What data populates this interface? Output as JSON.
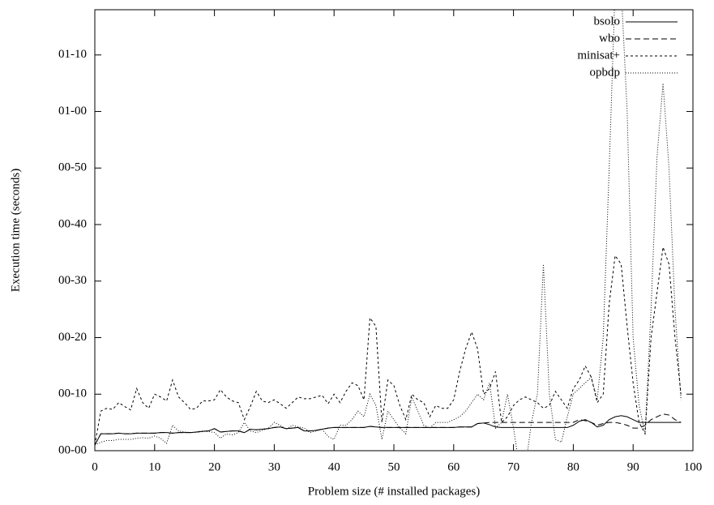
{
  "chart_data": {
    "type": "line",
    "xlabel": "Problem size (# installed packages)",
    "ylabel": "Execution time (seconds)",
    "xlim": [
      0,
      100
    ],
    "xticks": [
      0,
      10,
      20,
      30,
      40,
      50,
      60,
      70,
      80,
      90,
      100
    ],
    "ylim": [
      0,
      78
    ],
    "yticks": [
      {
        "value": 0,
        "label": "00-00"
      },
      {
        "value": 10,
        "label": "00-10"
      },
      {
        "value": 20,
        "label": "00-20"
      },
      {
        "value": 30,
        "label": "00-30"
      },
      {
        "value": 40,
        "label": "00-40"
      },
      {
        "value": 50,
        "label": "00-50"
      },
      {
        "value": 60,
        "label": "01-00"
      },
      {
        "value": 70,
        "label": "01-10"
      }
    ],
    "legend": "top-right",
    "x": [
      0,
      1,
      2,
      3,
      4,
      5,
      6,
      7,
      8,
      9,
      10,
      11,
      12,
      13,
      14,
      15,
      16,
      17,
      18,
      19,
      20,
      21,
      22,
      23,
      24,
      25,
      26,
      27,
      28,
      29,
      30,
      31,
      32,
      33,
      34,
      35,
      36,
      37,
      38,
      39,
      40,
      41,
      42,
      43,
      44,
      45,
      46,
      47,
      48,
      49,
      50,
      51,
      52,
      53,
      54,
      55,
      56,
      57,
      58,
      59,
      60,
      61,
      62,
      63,
      64,
      65,
      66,
      67,
      68,
      69,
      70,
      71,
      72,
      73,
      74,
      75,
      76,
      77,
      78,
      79,
      80,
      81,
      82,
      83,
      84,
      85,
      86,
      87,
      88,
      89,
      90,
      91,
      92,
      93,
      94,
      95,
      96,
      97,
      98
    ],
    "series": [
      {
        "name": "bsolo",
        "color": "#000000",
        "dash": "none",
        "values": [
          1,
          3,
          3,
          3,
          3.1,
          3,
          3,
          3.1,
          3.1,
          3.1,
          3.1,
          3.2,
          3.2,
          3.1,
          3.2,
          3.2,
          3.2,
          3.3,
          3.4,
          3.5,
          3.9,
          3.3,
          3.4,
          3.5,
          3.5,
          3.2,
          3.8,
          3.7,
          3.8,
          3.9,
          4.1,
          4.2,
          3.9,
          4,
          4.1,
          3.5,
          3.5,
          3.6,
          3.8,
          4,
          4.1,
          4.1,
          4.1,
          4.1,
          4.1,
          4.1,
          4.3,
          4.2,
          4.1,
          4.1,
          4.1,
          4.1,
          4.1,
          4.1,
          4.1,
          4.1,
          4.1,
          4.1,
          4.1,
          4.1,
          4.1,
          4.2,
          4.2,
          4.2,
          4.8,
          4.9,
          4.6,
          4.2,
          4.1,
          4.1,
          4.1,
          4.1,
          4.1,
          4.1,
          4.1,
          4.1,
          4.1,
          4.1,
          4.1,
          4.1,
          4.5,
          5.2,
          5.5,
          5,
          4.2,
          4.5,
          5.5,
          6,
          6.2,
          6,
          5.5,
          5,
          5,
          5,
          5,
          5,
          5,
          5,
          5
        ]
      },
      {
        "name": "wbo",
        "color": "#000000",
        "dash": "7,4",
        "values": [
          1,
          3,
          3,
          3,
          3.1,
          3,
          3,
          3.1,
          3.1,
          3.1,
          3.1,
          3.2,
          3.2,
          3.1,
          3.2,
          3.2,
          3.2,
          3.3,
          3.4,
          3.5,
          3.9,
          3.3,
          3.4,
          3.5,
          3.5,
          3.2,
          3.8,
          3.7,
          3.8,
          3.9,
          4.1,
          4.2,
          3.9,
          4,
          4.1,
          3.5,
          3.5,
          3.6,
          3.8,
          4,
          4.1,
          4.1,
          4.1,
          4.1,
          4.1,
          4.1,
          4.3,
          4.2,
          4.1,
          4.1,
          4.1,
          4.1,
          4.1,
          4.1,
          4.1,
          4.1,
          4.1,
          4.1,
          4.1,
          4.1,
          4.1,
          4.2,
          4.2,
          4.2,
          4.8,
          4.9,
          5,
          5,
          5,
          5,
          5,
          5,
          5,
          5,
          5,
          5,
          5,
          5,
          5,
          5,
          5,
          5.5,
          5.3,
          5,
          4.5,
          4.8,
          5,
          5,
          4.8,
          4.5,
          4,
          4,
          4.5,
          5.5,
          6,
          6.5,
          6.3,
          5.5,
          5
        ]
      },
      {
        "name": "minisat+",
        "color": "#000000",
        "dash": "3,3",
        "values": [
          1,
          7,
          7.5,
          7.3,
          8.5,
          7.8,
          7.2,
          11,
          8.5,
          7.5,
          10,
          9.5,
          8.8,
          12.5,
          9.5,
          8.5,
          7.3,
          7.5,
          8.8,
          8.8,
          9,
          10.8,
          9.5,
          8.8,
          8.5,
          5.5,
          7.8,
          10.5,
          8.8,
          8.5,
          9,
          8.3,
          7.5,
          8.5,
          9.5,
          9.2,
          9.2,
          9.5,
          9.8,
          8.3,
          10,
          8.5,
          10.5,
          12,
          11.5,
          9,
          23.5,
          22,
          5,
          12.5,
          11.5,
          8,
          5.5,
          10,
          9,
          8.5,
          6,
          8,
          7.5,
          7.5,
          9,
          14,
          18,
          21,
          18,
          10,
          11,
          14,
          5,
          6,
          8,
          9,
          9.5,
          9,
          8.5,
          7.5,
          8,
          10.5,
          9,
          7.5,
          11,
          12.5,
          15,
          13,
          8.5,
          10,
          26,
          34.5,
          33,
          22,
          12,
          5,
          3,
          20,
          28,
          36,
          33,
          20,
          10
        ]
      },
      {
        "name": "opbdp",
        "color": "#000000",
        "dash": "1,2",
        "values": [
          1,
          1.5,
          1.8,
          1.8,
          2,
          2,
          2,
          2.2,
          2.3,
          2.2,
          2.6,
          2.2,
          1.3,
          4.5,
          3.5,
          3.3,
          3.2,
          3.3,
          3.5,
          3.4,
          3.2,
          2.2,
          3,
          2.8,
          3.2,
          5,
          3.5,
          3.2,
          3.6,
          4,
          5,
          4.5,
          3.8,
          4.5,
          4.2,
          4,
          3.2,
          3.5,
          3.8,
          2.5,
          2,
          4.5,
          4.5,
          5.5,
          7,
          6,
          10,
          8,
          2,
          7,
          5.5,
          4,
          3,
          9.5,
          7,
          4.5,
          4,
          5,
          5,
          5,
          5.5,
          6,
          7,
          8.5,
          10,
          9,
          12,
          4,
          5,
          10,
          4,
          -3,
          -3,
          5,
          10,
          33,
          10,
          2,
          1.5,
          6,
          10,
          11,
          12,
          13,
          9,
          20,
          50,
          82,
          82,
          60,
          20,
          8,
          3,
          25,
          52,
          65,
          50,
          25,
          9
        ]
      }
    ]
  }
}
